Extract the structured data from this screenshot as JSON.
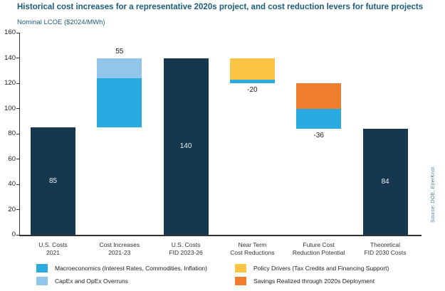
{
  "header": {
    "title": "Historical cost increases for a representative 2020s project, and cost reduction levers for future projects",
    "subtitle": "Nominal LCOE ($2024/MWh)"
  },
  "source_note": "Source: DOE, EnerKnol",
  "colors": {
    "title": "#1c5d7c",
    "subtitle": "#1c5d7c",
    "axis": "#333333",
    "tick_text": "#1a1a1a",
    "xlabel_text": "#333333",
    "legend_text": "#222222",
    "inside_label": "#e9eef2",
    "outside_label": "#1a1a1a",
    "source_text": "#4e7b91",
    "background": "#ffffff"
  },
  "chart_data": {
    "type": "bar",
    "variant": "waterfall",
    "title": "Historical cost increases for a representative 2020s project, and cost reduction levers for future projects",
    "ylabel": "Nominal LCOE ($2024/MWh)",
    "xlabel": "",
    "ylim": [
      0,
      160
    ],
    "yticks": [
      0,
      20,
      40,
      60,
      80,
      100,
      120,
      140,
      160
    ],
    "grid": false,
    "legend_position": "bottom",
    "series_colors": {
      "total": "#16384f",
      "macro": "#29abe2",
      "capex": "#92c5ea",
      "policy": "#fcc444",
      "savings": "#ee7d2d"
    },
    "bars": [
      {
        "category": [
          "U.S. Costs",
          "2021"
        ],
        "label": "85",
        "label_position": "inside",
        "segments": [
          {
            "series": "total",
            "from": 0,
            "to": 85
          }
        ]
      },
      {
        "category": [
          "Cost Increases",
          "2021-23"
        ],
        "label": "55",
        "label_position": "above",
        "segments": [
          {
            "series": "macro",
            "from": 85,
            "to": 124
          },
          {
            "series": "capex",
            "from": 124,
            "to": 140
          }
        ]
      },
      {
        "category": [
          "U.S. Costs",
          "FID 2023-26"
        ],
        "label": "140",
        "label_position": "inside",
        "segments": [
          {
            "series": "total",
            "from": 0,
            "to": 140
          }
        ]
      },
      {
        "category": [
          "Near Term",
          "Cost Reductions"
        ],
        "label": "-20",
        "label_position": "below",
        "segments": [
          {
            "series": "macro",
            "from": 120,
            "to": 123
          },
          {
            "series": "policy",
            "from": 123,
            "to": 140
          }
        ]
      },
      {
        "category": [
          "Future Cost",
          "Reduction Potential"
        ],
        "label": "-36",
        "label_position": "below",
        "segments": [
          {
            "series": "macro",
            "from": 84,
            "to": 100
          },
          {
            "series": "savings",
            "from": 100,
            "to": 120
          }
        ]
      },
      {
        "category": [
          "Theoretical",
          "FID 2030 Costs"
        ],
        "label": "84",
        "label_position": "inside",
        "segments": [
          {
            "series": "total",
            "from": 0,
            "to": 84
          }
        ]
      }
    ],
    "legend": [
      {
        "series": "macro",
        "label": "Macroeconomics (Interest Rates, Commodities, Inflation)",
        "column": 1
      },
      {
        "series": "capex",
        "label": "CapEx and OpEx Overruns",
        "column": 1
      },
      {
        "series": "policy",
        "label": "Policy Drivers (Tax Credits and Financing Support)",
        "column": 2
      },
      {
        "series": "savings",
        "label": "Savings Realized through 2020s Deployment",
        "column": 2
      }
    ]
  }
}
